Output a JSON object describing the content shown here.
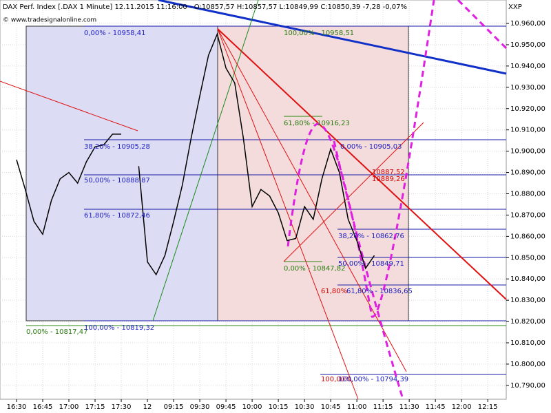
{
  "chart_data": {
    "type": "line",
    "title": "DAX Perf. Index [.DAX  1 Minute] 12.11.2015 11:16:00 - O:10857,57 H:10857,57 L:10849,99 C:10850,39 -7,28 -0,07%",
    "subtitle": "© www.tradesignalonline.com",
    "axis_label": "XXP",
    "categories": [
      "16:30",
      null,
      null,
      "16:45",
      null,
      null,
      "17:00",
      null,
      null,
      "17:15",
      null,
      null,
      "17:30",
      null,
      null,
      "12",
      null,
      null,
      "09:15",
      null,
      null,
      "09:30",
      null,
      null,
      "09:45",
      null,
      null,
      "10:00",
      null,
      null,
      "10:15",
      null,
      null,
      "10:30",
      null,
      null,
      "10:45",
      null,
      null,
      "11:00",
      null,
      null,
      "11:15",
      null,
      null,
      "11:30",
      null,
      null,
      "11:45",
      null,
      null,
      "12:00",
      null,
      null,
      "12:15"
    ],
    "series": [
      {
        "name": "DAX",
        "color": "#000000",
        "values": [
          10896,
          10882,
          10867,
          10861,
          10877,
          10887,
          10890,
          10885,
          10895,
          10902,
          10903,
          10908,
          10908,
          null,
          10893,
          10848,
          10842,
          10851,
          10867,
          10884,
          10906,
          10926,
          10945,
          10955,
          10939,
          10932,
          10906,
          10874,
          10882,
          10879,
          10871,
          10858,
          10859,
          10874,
          10868,
          10887,
          10901,
          10890,
          10868,
          10858,
          10845,
          10851,
          null,
          null,
          null,
          null,
          null,
          null,
          null,
          null,
          null,
          null,
          null,
          null,
          null
        ]
      }
    ],
    "ylim": [
      10783.5,
      10971
    ],
    "yticks": [
      {
        "value": 10790,
        "label": "10.790,00"
      },
      {
        "value": 10800,
        "label": "10.800,00"
      },
      {
        "value": 10810,
        "label": "10.810,00"
      },
      {
        "value": 10820,
        "label": "10.820,00"
      },
      {
        "value": 10830,
        "label": "10.830,00"
      },
      {
        "value": 10840,
        "label": "10.840,00"
      },
      {
        "value": 10850,
        "label": "10.850,00"
      },
      {
        "value": 10860,
        "label": "10.860,00"
      },
      {
        "value": 10870,
        "label": "10.870,00"
      },
      {
        "value": 10880,
        "label": "10.880,00"
      },
      {
        "value": 10890,
        "label": "10.890,00"
      },
      {
        "value": 10900,
        "label": "10.900,00"
      },
      {
        "value": 10910,
        "label": "10.910,00"
      },
      {
        "value": 10920,
        "label": "10.920,00"
      },
      {
        "value": 10930,
        "label": "10.930,00"
      },
      {
        "value": 10940,
        "label": "10.940,00"
      },
      {
        "value": 10950,
        "label": "10.950,00"
      },
      {
        "value": 10960,
        "label": "10.960,00"
      }
    ],
    "grid": true,
    "annotations": [
      "0,00% - 10958,41",
      "100,00% - 10958,51",
      "61,80% - 10916,23",
      "38,20% - 10905,28",
      "50,00% - 10888,87",
      "61,80% - 10872,46",
      "0,00% - 10905,03",
      "10887,52",
      "10889,26",
      "38,20% - 10862,76",
      "50,00% - 10849,71",
      "0,00% - 10847,82",
      "61,80% - 10836,65",
      "61,80%",
      "0,00% - 10817,47",
      "100,00% - 10819,32",
      "100,00%",
      "100,00% - 10794,39"
    ]
  }
}
